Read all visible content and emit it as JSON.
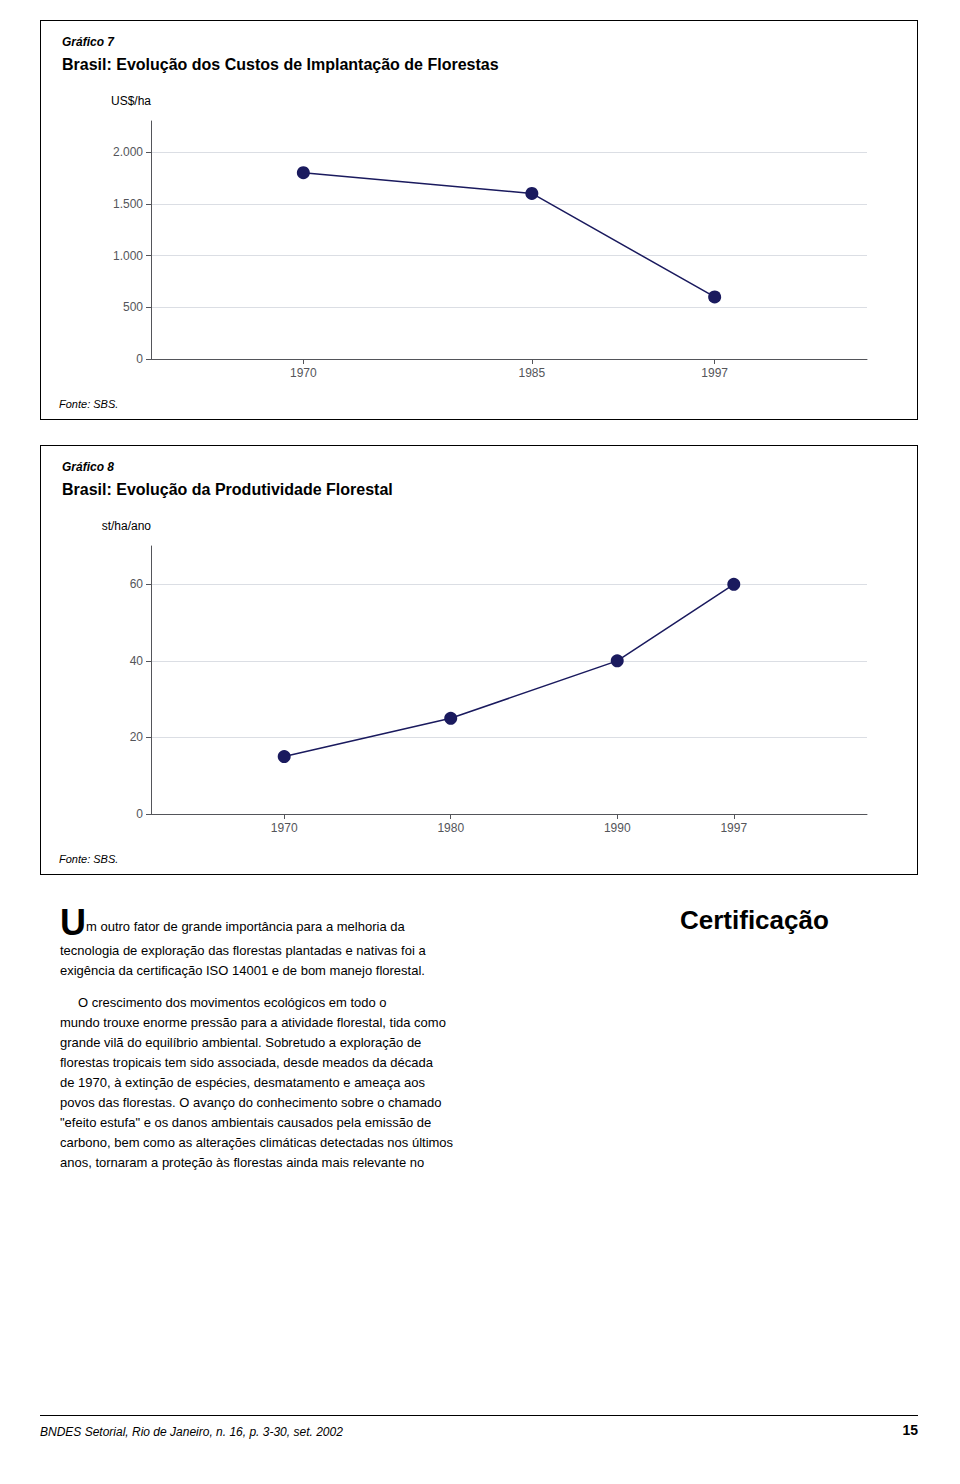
{
  "chart_data": [
    {
      "type": "line",
      "subtitle": "Gráfico 7",
      "title": "Brasil: Evolução dos Custos de Implantação de Florestas",
      "ylabel": "US$/ha",
      "x": [
        1970,
        1985,
        1997
      ],
      "values": [
        1800,
        1600,
        600
      ],
      "color": "#1a1a5e",
      "marker": "circle",
      "xlim": [
        1960,
        2007
      ],
      "xticks": [
        1970,
        1985,
        1997
      ],
      "ylim": [
        0,
        2300
      ],
      "yticks": [
        0,
        500,
        {
          "value": 1000,
          "label": "1.000"
        },
        {
          "value": 1500,
          "label": "1.500"
        },
        {
          "value": 2000,
          "label": "2.000"
        }
      ],
      "grid": true,
      "annotations": [
        "Fonte: SBS."
      ]
    },
    {
      "type": "line",
      "subtitle": "Gráfico 8",
      "title": "Brasil: Evolução da Produtividade Florestal",
      "ylabel": "st/ha/ano",
      "x": [
        1970,
        1980,
        1990,
        1997
      ],
      "values": [
        15,
        25,
        40,
        60
      ],
      "color": "#1a1a5e",
      "marker": "circle",
      "xlim": [
        1962,
        2005
      ],
      "xticks": [
        1970,
        1980,
        1990,
        1997
      ],
      "ylim": [
        0,
        70
      ],
      "yticks": [
        0,
        20,
        40,
        60
      ],
      "grid": true,
      "annotations": [
        "Fonte: SBS."
      ]
    }
  ],
  "annotations": [
    "U",
    "m outro fator de grande importância para a melhoria da",
    "tecnologia de exploração das florestas plantadas e nativas foi a",
    "exigência da certificação ISO 14001 e de bom manejo florestal.",
    "Certificação",
    "     O crescimento dos movimentos ecológicos em todo o",
    "mundo trouxe enorme pressão para a atividade florestal, tida como",
    "grande vilã do equilíbrio ambiental. Sobretudo a exploração de",
    "florestas tropicais tem sido associada, desde meados da década",
    "de 1970, à extinção de espécies, desmatamento e ameaça aos",
    "povos das florestas. O avanço do conhecimento sobre o chamado",
    "\"efeito estufa\" e os danos ambientais causados pela emissão de",
    "carbono, bem como as alterações climáticas detectadas nos últimos",
    "anos, tornaram a proteção às florestas ainda mais relevante no",
    "BNDES Setorial, Rio de Janeiro, n. 16, p. 3-30, set. 2002",
    "15"
  ]
}
